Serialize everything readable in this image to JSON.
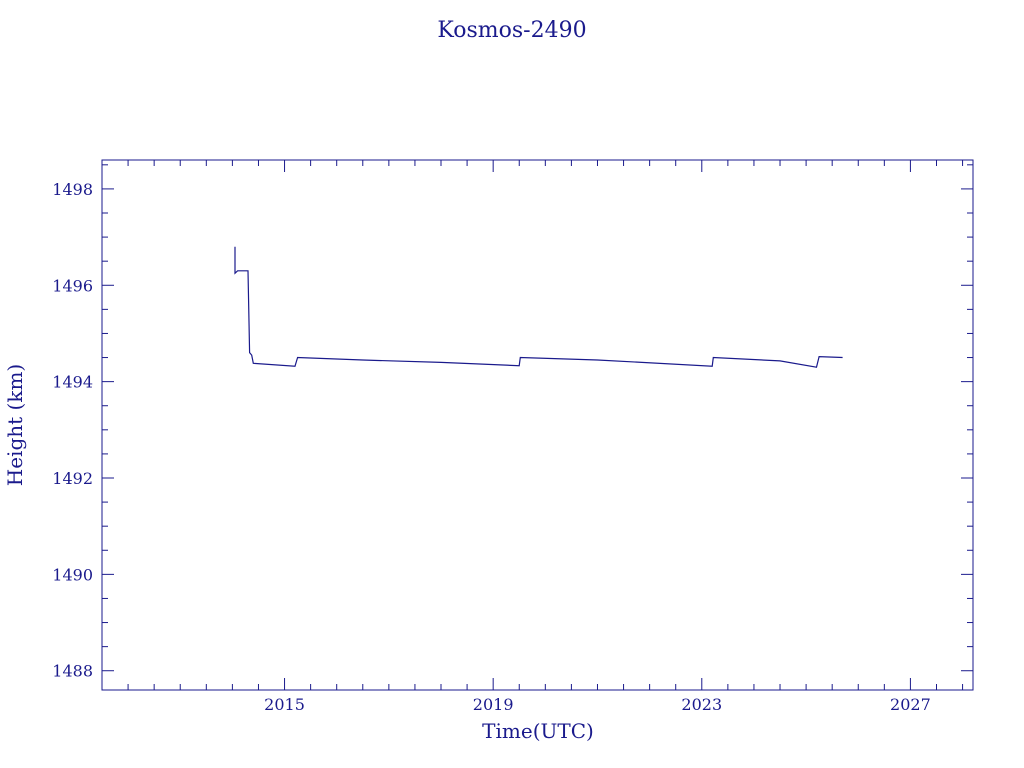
{
  "chart_data": {
    "type": "line",
    "title": "Kosmos-2490",
    "xlabel": "Time(UTC)",
    "ylabel": "Height (km)",
    "xlim": [
      2011.5,
      2028.2
    ],
    "ylim": [
      1487.6,
      1498.6
    ],
    "xticks": [
      2015,
      2019,
      2023,
      2027
    ],
    "xtick_labels": [
      "2015",
      "2019",
      "2023",
      "2027"
    ],
    "yticks": [
      1488,
      1490,
      1492,
      1494,
      1496,
      1498
    ],
    "ytick_labels": [
      "1488",
      "1490",
      "1492",
      "1494",
      "1496",
      "1498"
    ],
    "grid": false,
    "series": [
      {
        "points": [
          [
            2014.05,
            1496.8
          ],
          [
            2014.05,
            1496.25
          ],
          [
            2014.1,
            1496.3
          ],
          [
            2014.3,
            1496.3
          ],
          [
            2014.33,
            1494.6
          ],
          [
            2014.37,
            1494.55
          ],
          [
            2014.4,
            1494.38
          ],
          [
            2015.2,
            1494.32
          ],
          [
            2015.25,
            1494.5
          ],
          [
            2016.5,
            1494.45
          ],
          [
            2018.0,
            1494.4
          ],
          [
            2019.5,
            1494.33
          ],
          [
            2019.52,
            1494.5
          ],
          [
            2021.0,
            1494.45
          ],
          [
            2023.2,
            1494.32
          ],
          [
            2023.22,
            1494.5
          ],
          [
            2024.5,
            1494.43
          ],
          [
            2025.2,
            1494.3
          ],
          [
            2025.25,
            1494.52
          ],
          [
            2025.7,
            1494.5
          ]
        ]
      }
    ]
  },
  "colors": {
    "axis": "#1a1a8c",
    "line": "#1a1a8c",
    "background": "#ffffff"
  }
}
